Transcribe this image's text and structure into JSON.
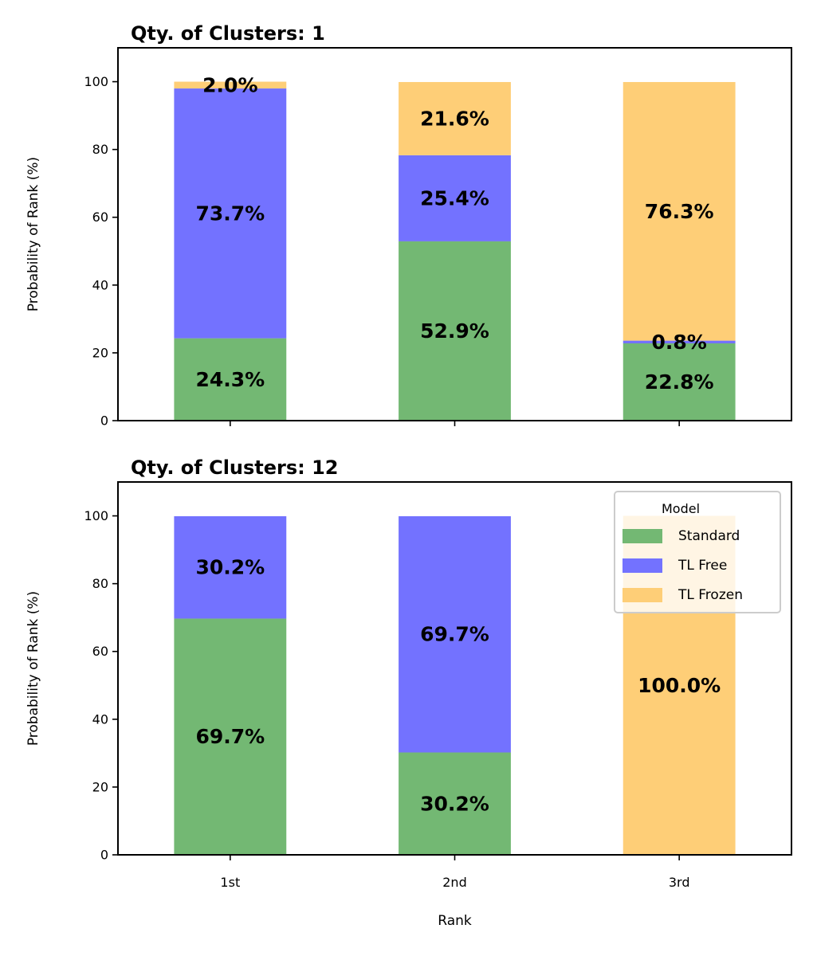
{
  "colors": {
    "Standard": "#73b873",
    "TL Free": "#7372ff",
    "TL Frozen": "#fece77"
  },
  "chart_data": [
    {
      "type": "bar",
      "stacked": true,
      "title": "Qty. of Clusters: 1",
      "xlabel": "",
      "ylabel": "Probability of Rank (%)",
      "ylim": [
        0,
        110
      ],
      "yticks": [
        0,
        20,
        40,
        60,
        80,
        100
      ],
      "categories": [
        "1st",
        "2nd",
        "3rd"
      ],
      "show_xticklabels": false,
      "series": [
        {
          "name": "Standard",
          "values": [
            24.3,
            52.9,
            22.8
          ],
          "labels": [
            "24.3%",
            "52.9%",
            "22.8%"
          ]
        },
        {
          "name": "TL Free",
          "values": [
            73.7,
            25.4,
            0.8
          ],
          "labels": [
            "73.7%",
            "25.4%",
            "0.8%"
          ]
        },
        {
          "name": "TL Frozen",
          "values": [
            2.0,
            21.6,
            76.3
          ],
          "labels": [
            "2.0%",
            "21.6%",
            "76.3%"
          ]
        }
      ],
      "legend": null
    },
    {
      "type": "bar",
      "stacked": true,
      "title": "Qty. of Clusters: 12",
      "xlabel": "Rank",
      "ylabel": "Probability of Rank (%)",
      "ylim": [
        0,
        110
      ],
      "yticks": [
        0,
        20,
        40,
        60,
        80,
        100
      ],
      "categories": [
        "1st",
        "2nd",
        "3rd"
      ],
      "show_xticklabels": true,
      "series": [
        {
          "name": "Standard",
          "values": [
            69.7,
            30.2,
            0
          ],
          "labels": [
            "69.7%",
            "30.2%",
            ""
          ]
        },
        {
          "name": "TL Free",
          "values": [
            30.2,
            69.7,
            0
          ],
          "labels": [
            "30.2%",
            "69.7%",
            ""
          ]
        },
        {
          "name": "TL Frozen",
          "values": [
            0,
            0,
            100.0
          ],
          "labels": [
            "",
            "",
            "100.0%"
          ]
        }
      ],
      "legend": {
        "title": "Model",
        "placement": "top-right",
        "entries": [
          "Standard",
          "TL Free",
          "TL Frozen"
        ]
      }
    }
  ]
}
